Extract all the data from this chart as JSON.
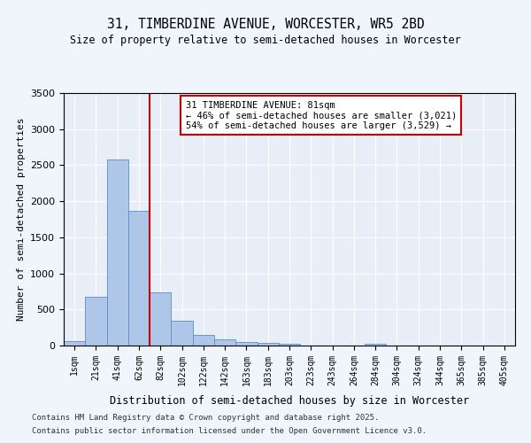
{
  "title1": "31, TIMBERDINE AVENUE, WORCESTER, WR5 2BD",
  "title2": "Size of property relative to semi-detached houses in Worcester",
  "xlabel": "Distribution of semi-detached houses by size in Worcester",
  "ylabel": "Number of semi-detached properties",
  "bin_labels": [
    "1sqm",
    "21sqm",
    "41sqm",
    "62sqm",
    "82sqm",
    "102sqm",
    "122sqm",
    "142sqm",
    "163sqm",
    "183sqm",
    "203sqm",
    "223sqm",
    "243sqm",
    "264sqm",
    "284sqm",
    "304sqm",
    "324sqm",
    "344sqm",
    "365sqm",
    "385sqm",
    "405sqm"
  ],
  "bar_values": [
    60,
    670,
    2580,
    1870,
    740,
    350,
    150,
    80,
    55,
    35,
    25,
    5,
    0,
    0,
    25,
    0,
    0,
    0,
    0,
    0,
    0
  ],
  "bar_color": "#aec6e8",
  "bar_edge_color": "#5a8fc2",
  "vline_x_index": 3.5,
  "vline_color": "#cc0000",
  "annotation_text": "31 TIMBERDINE AVENUE: 81sqm\n← 46% of semi-detached houses are smaller (3,021)\n54% of semi-detached houses are larger (3,529) →",
  "annotation_box_color": "#ffffff",
  "annotation_box_edge": "#cc0000",
  "ylim": [
    0,
    3500
  ],
  "yticks": [
    0,
    500,
    1000,
    1500,
    2000,
    2500,
    3000,
    3500
  ],
  "background_color": "#e8eef8",
  "fig_background_color": "#f0f4fb",
  "footer1": "Contains HM Land Registry data © Crown copyright and database right 2025.",
  "footer2": "Contains public sector information licensed under the Open Government Licence v3.0."
}
